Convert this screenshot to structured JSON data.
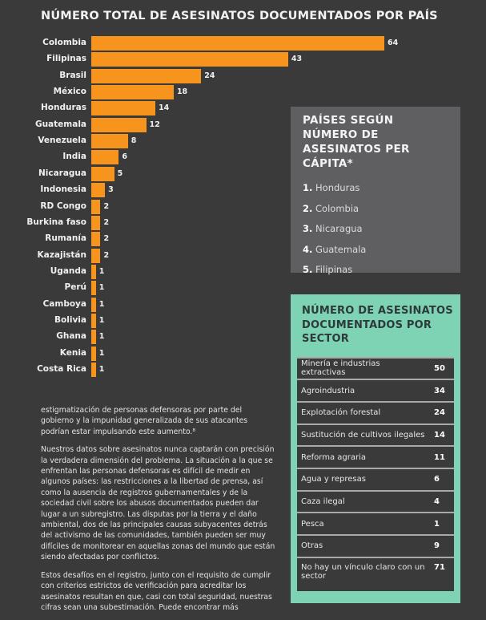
{
  "chart_data": {
    "type": "bar",
    "title": "NÚMERO TOTAL DE ASESINATOS DOCUMENTADOS POR PAÍS",
    "categories": [
      "Colombia",
      "Filipinas",
      "Brasil",
      "México",
      "Honduras",
      "Guatemala",
      "Venezuela",
      "India",
      "Nicaragua",
      "Indonesia",
      "RD Congo",
      "Burkina faso",
      "Rumanía",
      "Kazajistán",
      "Uganda",
      "Perú",
      "Camboya",
      "Bolivia",
      "Ghana",
      "Kenia",
      "Costa Rica"
    ],
    "values": [
      64,
      43,
      24,
      18,
      14,
      12,
      8,
      6,
      5,
      3,
      2,
      2,
      2,
      2,
      1,
      1,
      1,
      1,
      1,
      1,
      1
    ],
    "xlim": [
      0,
      64
    ],
    "color": "#f7941d"
  },
  "per_capita": {
    "title": "PAÍSES SEGÚN NÚMERO DE ASESINATOS PER CÁPITA*",
    "items": [
      {
        "n": "1.",
        "name": "Honduras"
      },
      {
        "n": "2.",
        "name": "Colombia"
      },
      {
        "n": "3.",
        "name": "Nicaragua"
      },
      {
        "n": "4.",
        "name": "Guatemala"
      },
      {
        "n": "5.",
        "name": "Filipinas"
      }
    ]
  },
  "sector": {
    "title": "NÚMERO DE ASESINATOS DOCUMENTADOS POR SECTOR",
    "rows": [
      {
        "label": "Minería e industrias extractivas",
        "value": "50"
      },
      {
        "label": "Agroindustria",
        "value": "34"
      },
      {
        "label": "Explotación forestal",
        "value": "24"
      },
      {
        "label": "Sustitución de cultivos ilegales",
        "value": "14"
      },
      {
        "label": "Reforma agraria",
        "value": "11"
      },
      {
        "label": "Agua y represas",
        "value": "6"
      },
      {
        "label": "Caza ilegal",
        "value": "4"
      },
      {
        "label": "Pesca",
        "value": "1"
      },
      {
        "label": "Otras",
        "value": "9"
      },
      {
        "label": "No hay un vínculo claro con un sector",
        "value": "71"
      }
    ]
  },
  "body": [
    "estigmatización de personas defensoras por parte del gobierno y la impunidad generalizada de sus atacantes podrían estar impulsando este aumento.⁸",
    "Nuestros datos sobre asesinatos nunca captarán con precisión la verdadera dimensión del problema. La situación a la que se enfrentan las personas defensoras es difícil de medir en algunos países: las restricciones a la libertad de prensa, así como la ausencia de registros gubernamentales y de la sociedad civil sobre los abusos documentados pueden dar lugar a un subregistro. Las disputas por la tierra y el daño ambiental, dos de las principales causas subyacentes detrás del activismo de las comunidades, también pueden ser muy difíciles de monitorear en aquellas zonas del mundo que están siendo afectadas por conflictos.",
    "Estos desafíos en el registro, junto con el requisito de cumplir con criterios estrictos de verificación para acreditar los asesinatos resultan en que, casi con total seguridad, nuestras cifras sean una subestimación. Puede encontrar más"
  ]
}
